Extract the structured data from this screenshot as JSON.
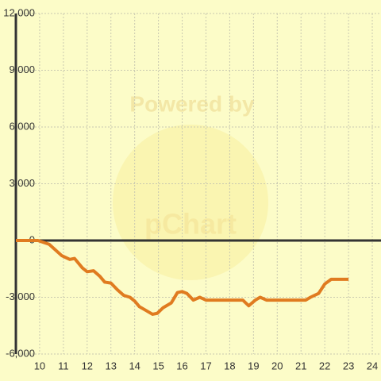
{
  "chart_data": {
    "type": "line",
    "watermark": [
      "Powered by",
      "pChart"
    ],
    "x": [
      9,
      9.93,
      10.4,
      10.93,
      11.27,
      11.47,
      11.8,
      12,
      12.27,
      12.54,
      12.74,
      13,
      13.27,
      13.54,
      13.8,
      14,
      14.2,
      14.48,
      14.75,
      14.95,
      15.2,
      15.54,
      15.8,
      16,
      16.2,
      16.47,
      16.74,
      17,
      18.55,
      18.8,
      19.08,
      19.28,
      19.55,
      21.2,
      21.4,
      21.74,
      22,
      22.27,
      23
    ],
    "values": [
      0,
      0,
      -200,
      -800,
      -1000,
      -950,
      -1450,
      -1650,
      -1600,
      -1900,
      -2200,
      -2250,
      -2600,
      -2900,
      -3000,
      -3200,
      -3500,
      -3700,
      -3900,
      -3850,
      -3550,
      -3300,
      -2750,
      -2700,
      -2800,
      -3150,
      -3000,
      -3150,
      -3150,
      -3450,
      -3150,
      -3000,
      -3150,
      -3150,
      -3000,
      -2800,
      -2300,
      -2050,
      -2050
    ],
    "color": "#e07b20",
    "xlim": [
      9,
      24.3
    ],
    "xticks": [
      10,
      11,
      12,
      13,
      14,
      15,
      16,
      17,
      18,
      19,
      20,
      21,
      22,
      23,
      24
    ],
    "ylim": [
      -6000,
      12000
    ],
    "yticks": [
      {
        "value": -6000,
        "label": "-6,000"
      },
      {
        "value": -3000,
        "label": "-3,000"
      },
      0,
      {
        "value": 3000,
        "label": "3,000"
      },
      {
        "value": 6000,
        "label": "6,000"
      },
      {
        "value": 9000,
        "label": "9,000"
      },
      {
        "value": 12000,
        "label": "12,000"
      }
    ],
    "grid": true
  }
}
